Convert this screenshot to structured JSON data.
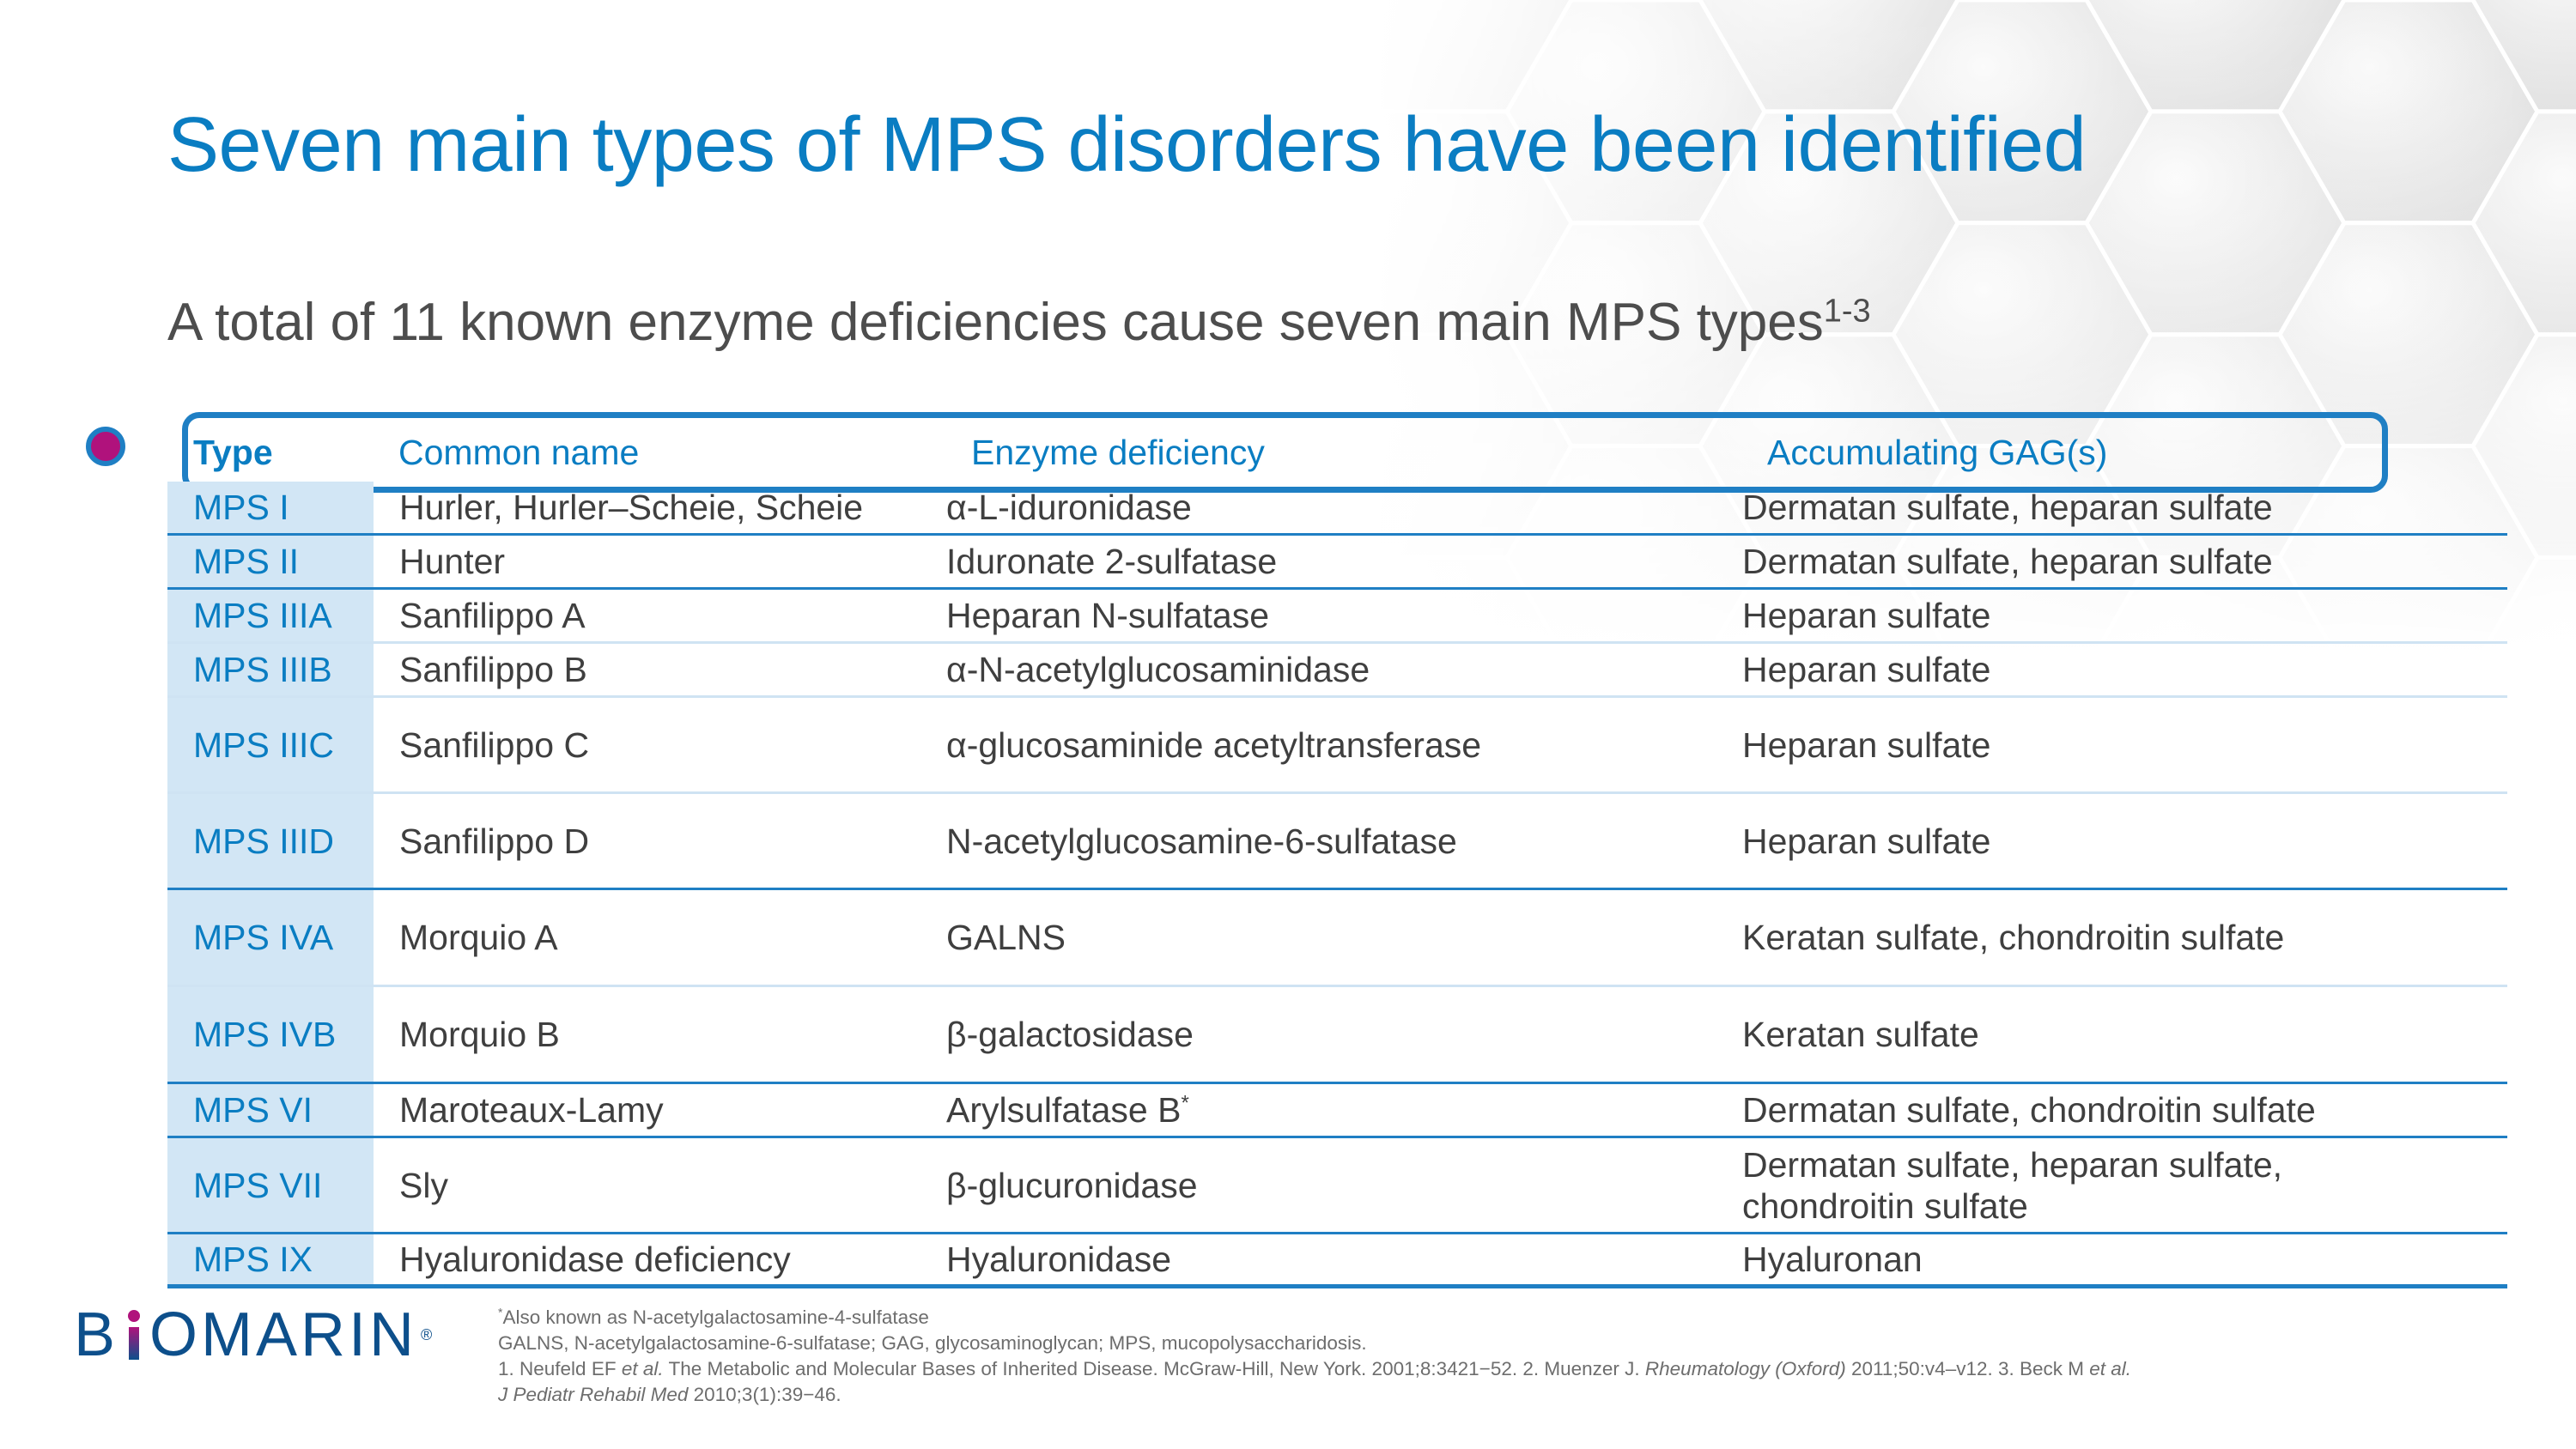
{
  "slide": {
    "title": "Seven main types of MPS disorders have been identified",
    "subtitle": "A total of 11 known enzyme deficiencies cause seven main MPS types",
    "subtitle_sup": "1-3"
  },
  "table": {
    "headers": {
      "type": "Type",
      "common_name": "Common name",
      "enzyme": "Enzyme deficiency",
      "gag": "Accumulating GAG(s)"
    },
    "rows": [
      {
        "type": "MPS I",
        "common_name": "Hurler, Hurler–Scheie, Scheie",
        "enzyme": "α-L-iduronidase",
        "gag": "Dermatan sulfate, heparan sulfate"
      },
      {
        "type": "MPS II",
        "common_name": "Hunter",
        "enzyme": "Iduronate 2-sulfatase",
        "gag": "Dermatan sulfate, heparan sulfate"
      },
      {
        "type": "MPS IIIA",
        "common_name": "Sanfilippo A",
        "enzyme": "Heparan N-sulfatase",
        "gag": "Heparan sulfate"
      },
      {
        "type": "MPS IIIB",
        "common_name": "Sanfilippo B",
        "enzyme": "α-N-acetylglucosaminidase",
        "gag": "Heparan sulfate"
      },
      {
        "type": "MPS IIIC",
        "common_name": "Sanfilippo C",
        "enzyme": "α-glucosaminide acetyltransferase",
        "gag": "Heparan sulfate"
      },
      {
        "type": "MPS IIID",
        "common_name": "Sanfilippo D",
        "enzyme": "N-acetylglucosamine-6-sulfatase",
        "gag": "Heparan sulfate"
      },
      {
        "type": "MPS IVA",
        "common_name": "Morquio A",
        "enzyme": "GALNS",
        "gag": "Keratan sulfate, chondroitin sulfate"
      },
      {
        "type": "MPS IVB",
        "common_name": "Morquio B",
        "enzyme": "β-galactosidase",
        "gag": "Keratan sulfate"
      },
      {
        "type": "MPS VI",
        "common_name": "Maroteaux-Lamy",
        "enzyme": "Arylsulfatase B",
        "enzyme_sup": "*",
        "gag": "Dermatan sulfate, chondroitin sulfate"
      },
      {
        "type": "MPS VII",
        "common_name": "Sly",
        "enzyme": "β-glucuronidase",
        "gag": "Dermatan sulfate, heparan sulfate,",
        "gag2": "chondroitin sulfate"
      },
      {
        "type": "MPS IX",
        "common_name": "Hyaluronidase deficiency",
        "enzyme": "Hyaluronidase",
        "gag": "Hyaluronan"
      }
    ]
  },
  "logo": {
    "part1": "B",
    "part2": "OMARIN",
    "reg": "®"
  },
  "footnotes": {
    "star": "*",
    "star_note": "Also known as N-acetylgalactosamine-4-sulfatase",
    "abbreviations": "GALNS, N-acetylgalactosamine-6-sulfatase; GAG, glycosaminoglycan; MPS, mucopolysaccharidosis.",
    "ref1_a": "1.  Neufeld EF ",
    "ref1_etal": "et al.",
    "ref1_b": " The Metabolic and Molecular Bases of Inherited Disease. McGraw-Hill, New York. 2001;8:3421−52. 2. Muenzer J. ",
    "ref2_journal": "Rheumatology (Oxford)",
    "ref2_b": " 2011;50:v4–v12. 3. Beck M ",
    "ref3_etal": "et al.",
    "ref3_journal": "J Pediatr Rehabil Med",
    "ref3_b": " 2010;3(1):39−46."
  }
}
